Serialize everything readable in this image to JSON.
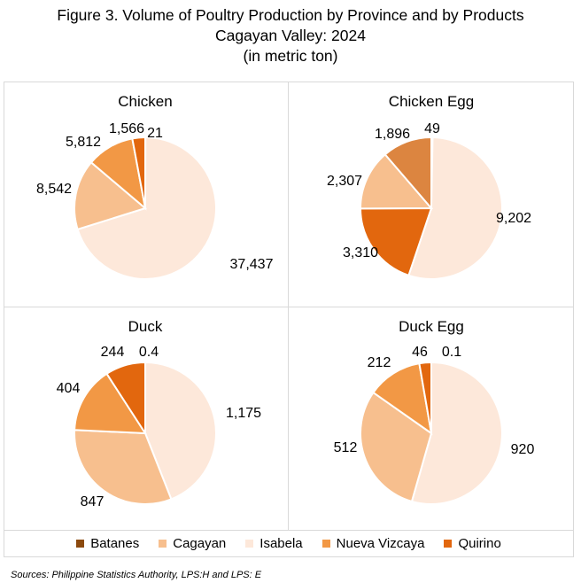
{
  "title": {
    "line1": "Figure 3. Volume of Poultry Production by Province and by Products",
    "line2": "Cagayan Valley: 2024",
    "line3": "(in metric ton)"
  },
  "colors": {
    "Batanes": "#8c4a0e",
    "Cagayan": "#f7bf8e",
    "Isabela": "#fde8da",
    "Nueva Vizcaya": "#f29845",
    "Quirino": "#e2670e",
    "Quirino_chicken_egg": "#dc8540"
  },
  "legend": [
    {
      "name": "Batanes",
      "color": "#8c4a0e"
    },
    {
      "name": "Cagayan",
      "color": "#f7bf8e"
    },
    {
      "name": "Isabela",
      "color": "#fde8da"
    },
    {
      "name": "Nueva Vizcaya",
      "color": "#f29845"
    },
    {
      "name": "Quirino",
      "color": "#e2670e"
    }
  ],
  "chart_data": [
    {
      "type": "pie",
      "title": "Chicken",
      "slices": [
        {
          "name": "Batanes",
          "value": 21,
          "label": "21"
        },
        {
          "name": "Isabela",
          "value": 37437,
          "label": "37,437"
        },
        {
          "name": "Cagayan",
          "value": 8542,
          "label": "8,542"
        },
        {
          "name": "Nueva Vizcaya",
          "value": 5812,
          "label": "5,812"
        },
        {
          "name": "Quirino",
          "value": 1566,
          "label": "1,566"
        }
      ]
    },
    {
      "type": "pie",
      "title": "Chicken Egg",
      "slices": [
        {
          "name": "Batanes",
          "value": 49,
          "label": "49"
        },
        {
          "name": "Isabela",
          "value": 9202,
          "label": "9,202"
        },
        {
          "name": "Quirino",
          "value": 3310,
          "label": "3,310"
        },
        {
          "name": "Cagayan",
          "value": 2307,
          "label": "2,307"
        },
        {
          "name": "Nueva Vizcaya",
          "value": 1896,
          "label": "1,896"
        }
      ]
    },
    {
      "type": "pie",
      "title": "Duck",
      "slices": [
        {
          "name": "Batanes",
          "value": 0.4,
          "label": "0.4"
        },
        {
          "name": "Isabela",
          "value": 1175,
          "label": "1,175"
        },
        {
          "name": "Cagayan",
          "value": 847,
          "label": "847"
        },
        {
          "name": "Nueva Vizcaya",
          "value": 404,
          "label": "404"
        },
        {
          "name": "Quirino",
          "value": 244,
          "label": "244"
        }
      ]
    },
    {
      "type": "pie",
      "title": "Duck Egg",
      "slices": [
        {
          "name": "Batanes",
          "value": 0.1,
          "label": "0.1"
        },
        {
          "name": "Isabela",
          "value": 920,
          "label": "920"
        },
        {
          "name": "Cagayan",
          "value": 512,
          "label": "512"
        },
        {
          "name": "Nueva Vizcaya",
          "value": 212,
          "label": "212"
        },
        {
          "name": "Quirino",
          "value": 46,
          "label": "46"
        }
      ]
    }
  ],
  "source": "Sources: Philippine Statistics Authority, LPS:H and LPS: E"
}
